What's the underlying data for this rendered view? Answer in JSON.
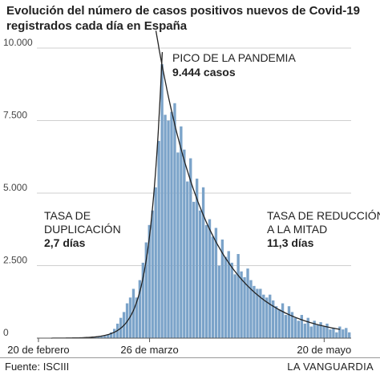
{
  "title_line1": "Evolución del número de casos positivos nuevos de Covid-19",
  "title_line2": "registrados cada día en España",
  "footer_source": "Fuente: ISCIII",
  "footer_brand": "LA VANGUARDIA",
  "chart_data": {
    "type": "bar",
    "ylim": [
      0,
      10000
    ],
    "yticks": [
      {
        "value": 0,
        "label": "0"
      },
      {
        "value": 2500,
        "label": "2.500"
      },
      {
        "value": 5000,
        "label": "5.000"
      },
      {
        "value": 7500,
        "label": "7.500"
      },
      {
        "value": 10000,
        "label": "10.000"
      }
    ],
    "xticks": [
      {
        "index": 0,
        "label": "20 de febrero"
      },
      {
        "index": 35,
        "label": "26 de marzo"
      },
      {
        "index": 90,
        "label": "20 de mayo"
      }
    ],
    "values": [
      0,
      0,
      0,
      0,
      0,
      0,
      0,
      0,
      0,
      0,
      0,
      0,
      0,
      0,
      5,
      10,
      15,
      20,
      30,
      45,
      60,
      80,
      120,
      200,
      320,
      500,
      700,
      900,
      1200,
      1400,
      1700,
      1400,
      2000,
      2600,
      3300,
      3900,
      4400,
      5200,
      6800,
      9444,
      7700,
      7500,
      7800,
      8100,
      6400,
      7300,
      6500,
      5400,
      6200,
      4700,
      5500,
      4400,
      5200,
      3900,
      4100,
      3500,
      3800,
      2500,
      3400,
      2800,
      3000,
      2600,
      2200,
      2900,
      2300,
      2100,
      2400,
      2000,
      1800,
      1700,
      1700,
      1500,
      1400,
      1500,
      1300,
      1100,
      1000,
      1200,
      800,
      1100,
      900,
      700,
      600,
      800,
      500,
      700,
      400,
      600,
      450,
      550,
      400,
      500,
      300,
      350,
      200,
      400,
      300,
      350,
      200
    ],
    "curves": [
      {
        "name": "TASA DE DUPLICACIÓN 2,7 días",
        "type": "exponential",
        "from_index": 18,
        "to_index": 40
      },
      {
        "name": "TASA DE REDUCCIÓN A LA MITAD 11,3 días",
        "type": "decay",
        "from_index": 37,
        "to_index": 95
      }
    ],
    "annotations": {
      "peak_line1": "PICO DE LA PANDEMIA",
      "peak_line2": "9.444 casos",
      "dup_line1": "TASA DE",
      "dup_line2": "DUPLICACIÓN",
      "dup_line3": "2,7 días",
      "red_line1": "TASA DE REDUCCIÓN",
      "red_line2": "A LA MITAD",
      "red_line3": "11,3 días"
    },
    "bar_color": "#7ba3c9",
    "grid": true
  }
}
